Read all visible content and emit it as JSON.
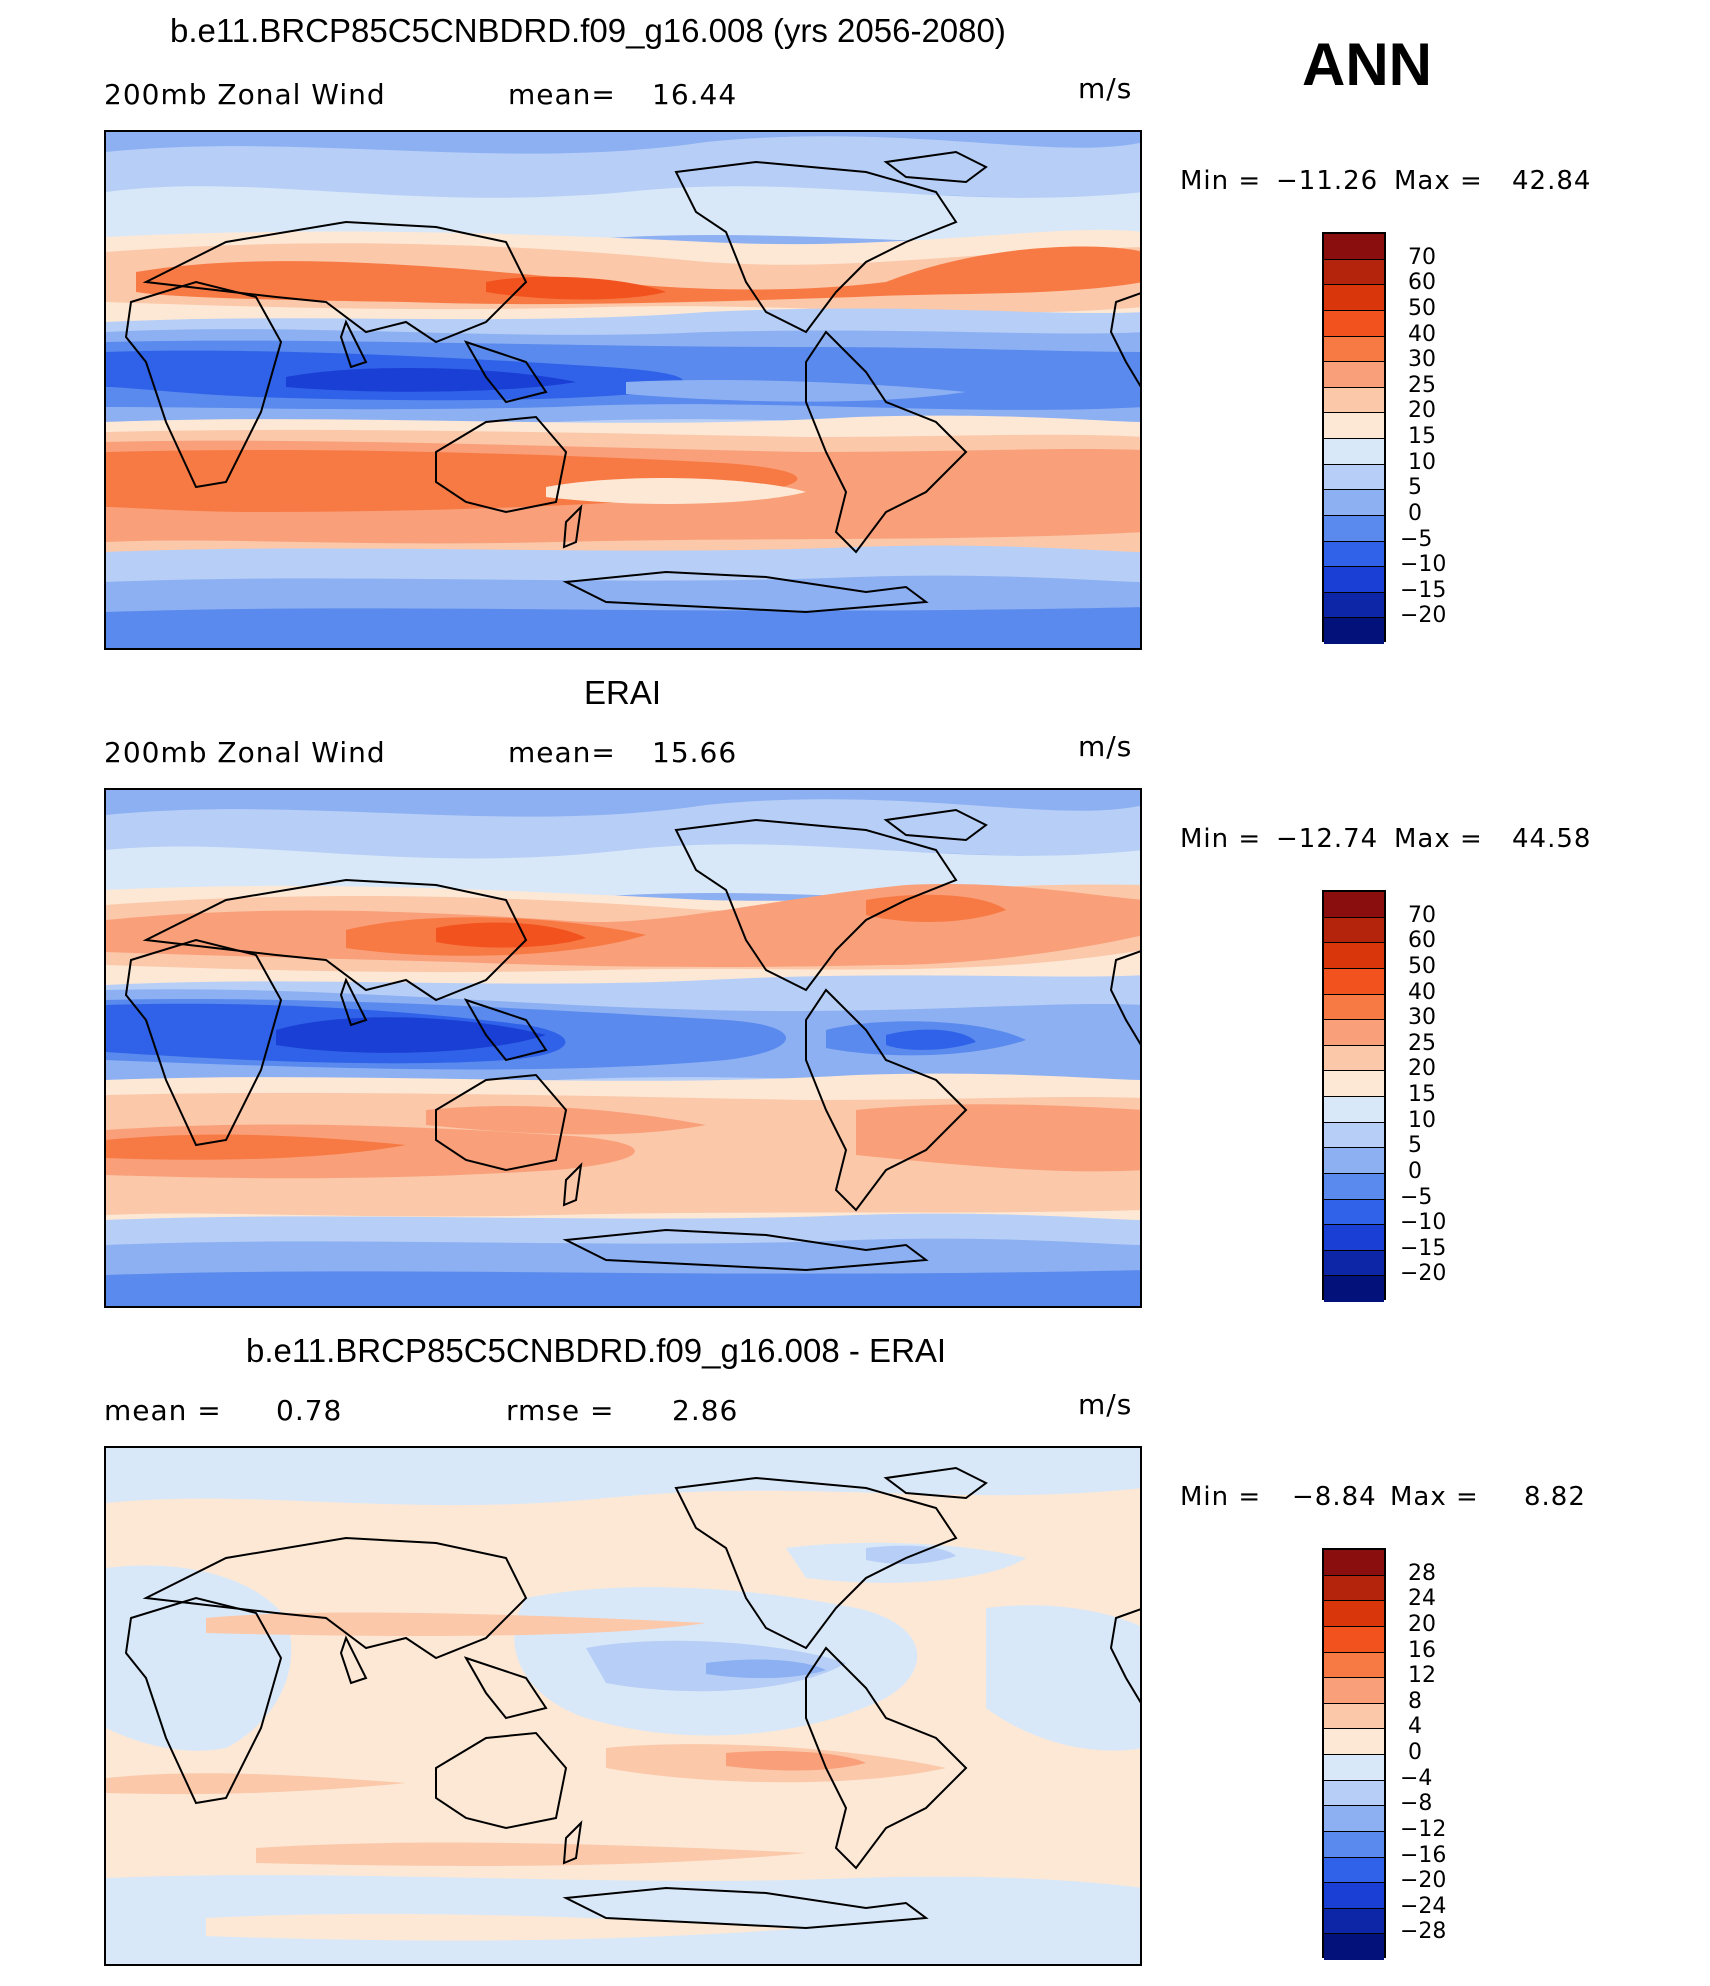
{
  "season": "ANN",
  "units": "m/s",
  "panels": [
    {
      "title": "b.e11.BRCP85C5CNBDRD.f09_g16.008 (yrs 2056-2080)",
      "field_label": "200mb Zonal Wind",
      "stat_label": "mean=",
      "stat_value": "16.44",
      "units": "m/s",
      "min_label": "Min  =",
      "min_value": "−11.26",
      "max_label": "Max  =",
      "max_value": "42.84",
      "colorbar_ticks": [
        "70",
        "60",
        "50",
        "40",
        "30",
        "25",
        "20",
        "15",
        "10",
        "5",
        "0",
        "−5",
        "−10",
        "−15",
        "−20"
      ]
    },
    {
      "title": "ERAI",
      "field_label": "200mb Zonal Wind",
      "stat_label": "mean=",
      "stat_value": "15.66",
      "units": "m/s",
      "min_label": "Min  =",
      "min_value": "−12.74",
      "max_label": "Max  =",
      "max_value": "44.58",
      "colorbar_ticks": [
        "70",
        "60",
        "50",
        "40",
        "30",
        "25",
        "20",
        "15",
        "10",
        "5",
        "0",
        "−5",
        "−10",
        "−15",
        "−20"
      ]
    },
    {
      "title": "b.e11.BRCP85C5CNBDRD.f09_g16.008 - ERAI",
      "field_label": "mean =",
      "field_value": "0.78",
      "stat_label": "rmse =",
      "stat_value": "2.86",
      "units": "m/s",
      "min_label": "Min  =",
      "min_value": "−8.84",
      "max_label": "Max  =",
      "max_value": "8.82",
      "colorbar_ticks": [
        "28",
        "24",
        "20",
        "16",
        "12",
        "8",
        "4",
        "0",
        "−4",
        "−8",
        "−12",
        "−16",
        "−20",
        "−24",
        "−28"
      ]
    }
  ],
  "colorbar_colors": [
    "#8b0e0e",
    "#b4240c",
    "#d9360c",
    "#f2521e",
    "#f77a45",
    "#f9a07a",
    "#fbc8aa",
    "#fde8d5",
    "#d9e8f8",
    "#b7cff6",
    "#8db0f2",
    "#5a8aee",
    "#2f62e8",
    "#1a3fd4",
    "#0d26a8",
    "#03117a"
  ],
  "map_color_scale": {
    "strong_negative": "#1a3fd4",
    "negative": "#2f62e8",
    "weak_negative": "#5a8aee",
    "slight_negative": "#8db0f2",
    "near_zero": "#b7cff6",
    "weak_positive": "#d9e8f8",
    "slight_positive": "#fde8d5",
    "positive": "#fbc8aa",
    "moderate_positive": "#f9a07a",
    "strong_positive": "#f77a45",
    "very_strong_positive": "#f2521e"
  }
}
